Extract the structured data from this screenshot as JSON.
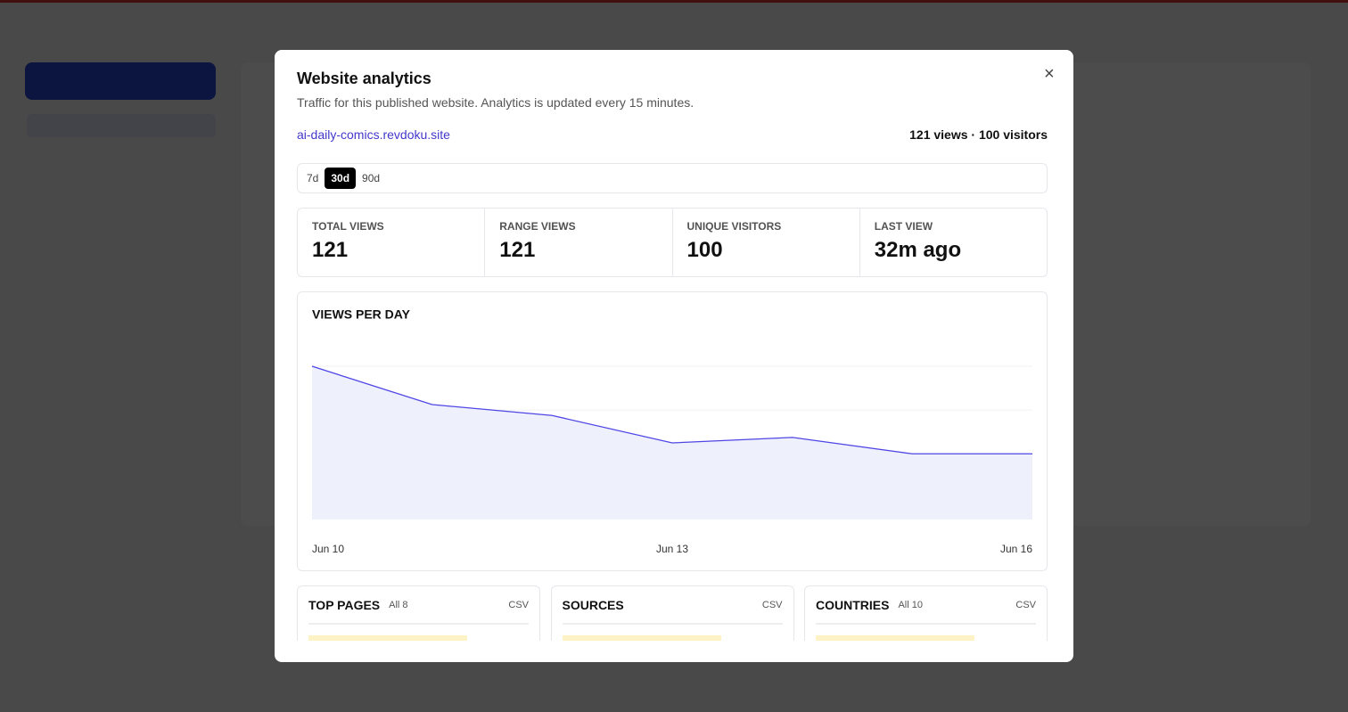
{
  "modal": {
    "title": "Website analytics",
    "subtitle": "Traffic for this published website. Analytics is updated every 15 minutes.",
    "site": "ai-daily-comics.revdoku.site",
    "summary": "121 views · 100 visitors",
    "ranges": [
      "7d",
      "30d",
      "90d"
    ],
    "active_range": 1,
    "stats": [
      {
        "label": "TOTAL VIEWS",
        "value": 121
      },
      {
        "label": "RANGE VIEWS",
        "value": 121
      },
      {
        "label": "UNIQUE VISITORS",
        "value": 100
      },
      {
        "label": "LAST VIEW",
        "value": "32m ago"
      }
    ],
    "panels": [
      {
        "title": "TOP PAGES",
        "filter": "All 8",
        "csv": "CSV"
      },
      {
        "title": "SOURCES",
        "csv": "CSV"
      },
      {
        "title": "COUNTRIES",
        "filter": "All 10",
        "csv": "CSV"
      }
    ]
  },
  "chart_data": {
    "type": "area",
    "title": "VIEWS PER DAY",
    "categories": [
      "Jun 10",
      null,
      null,
      "Jun 13",
      null,
      null,
      "Jun 16"
    ],
    "values": [
      28,
      21,
      19,
      14,
      15,
      12,
      12
    ],
    "color": "#4f46e5",
    "fill": "#eef0fb",
    "ylim": [
      0,
      28
    ],
    "yticks": [
      20,
      28
    ],
    "grid": true
  }
}
